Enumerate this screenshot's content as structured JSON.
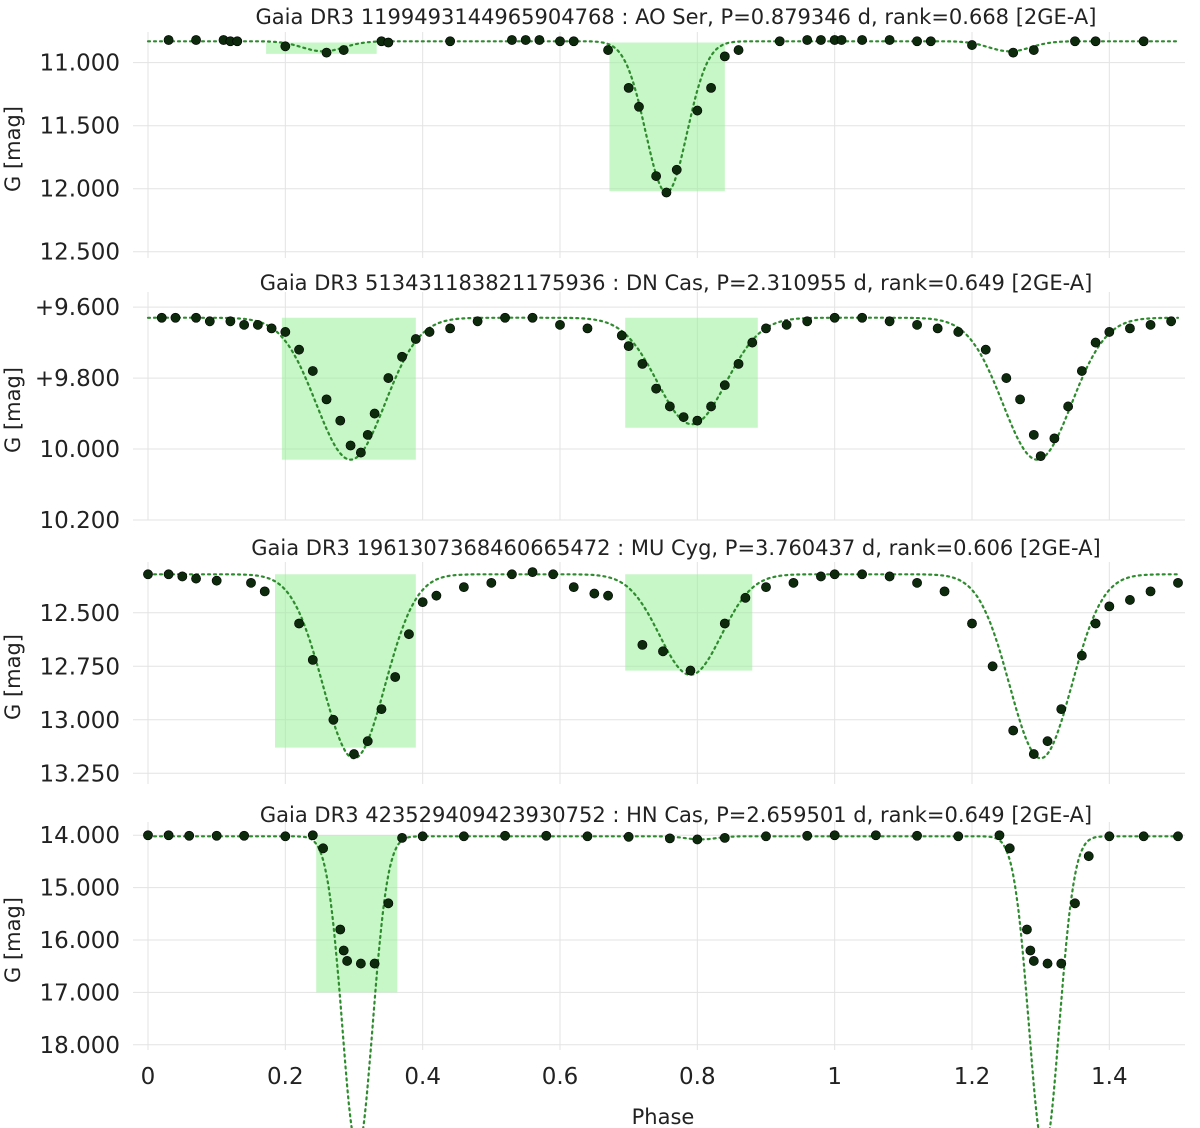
{
  "chart_data": {
    "type": "scatter",
    "xlabel": "Phase",
    "x_ticks": [
      0,
      0.2,
      0.4,
      0.6,
      0.8,
      1,
      1.2,
      1.4
    ],
    "x_tick_labels": [
      "0",
      "0.2",
      "0.4",
      "0.6",
      "0.8",
      "1",
      "1.2",
      "1.4"
    ],
    "xlim": [
      0,
      1.5
    ],
    "grid": true,
    "colors": {
      "points": "#0d2a0d",
      "model_line": "#2e8b2e",
      "eclipse_box": "#99ee99"
    },
    "panels": [
      {
        "title": "Gaia DR3 1199493144965904768 : AO Ser, P=0.879346 d, rank=0.668 [2GE-A]",
        "ylabel": "G [mag]",
        "y_reversed": true,
        "ylim": [
          10.82,
          12.55
        ],
        "y_ticks": [
          11.0,
          11.5,
          12.0,
          12.5
        ],
        "y_tick_labels": [
          "11.000",
          "11.500",
          "12.000",
          "12.500"
        ],
        "baseline": 10.83,
        "eclipses": [
          {
            "center": 0.255,
            "width": 0.03,
            "depth": 0.08
          },
          {
            "center": 0.755,
            "width": 0.03,
            "depth": 1.2
          }
        ],
        "highlight_boxes": [
          {
            "x": [
              0.172,
              0.333
            ],
            "y": [
              10.84,
              10.93
            ]
          },
          {
            "x": [
              0.672,
              0.84
            ],
            "y": [
              10.84,
              12.02
            ]
          }
        ],
        "points": [
          [
            0.03,
            10.82
          ],
          [
            0.07,
            10.82
          ],
          [
            0.11,
            10.82
          ],
          [
            0.12,
            10.83
          ],
          [
            0.13,
            10.83
          ],
          [
            0.2,
            10.87
          ],
          [
            0.26,
            10.92
          ],
          [
            0.285,
            10.9
          ],
          [
            0.34,
            10.83
          ],
          [
            0.35,
            10.84
          ],
          [
            0.44,
            10.83
          ],
          [
            0.53,
            10.82
          ],
          [
            0.55,
            10.82
          ],
          [
            0.57,
            10.82
          ],
          [
            0.6,
            10.83
          ],
          [
            0.62,
            10.83
          ],
          [
            0.67,
            10.9
          ],
          [
            0.7,
            11.2
          ],
          [
            0.715,
            11.35
          ],
          [
            0.74,
            11.9
          ],
          [
            0.755,
            12.03
          ],
          [
            0.77,
            11.85
          ],
          [
            0.8,
            11.38
          ],
          [
            0.82,
            11.2
          ],
          [
            0.84,
            10.95
          ],
          [
            0.86,
            10.9
          ],
          [
            0.92,
            10.83
          ],
          [
            0.96,
            10.82
          ],
          [
            0.98,
            10.82
          ],
          [
            1.0,
            10.82
          ],
          [
            1.01,
            10.82
          ],
          [
            1.04,
            10.82
          ],
          [
            1.08,
            10.82
          ],
          [
            1.12,
            10.83
          ],
          [
            1.14,
            10.83
          ],
          [
            1.2,
            10.86
          ],
          [
            1.26,
            10.92
          ],
          [
            1.29,
            10.9
          ],
          [
            1.35,
            10.83
          ],
          [
            1.38,
            10.83
          ],
          [
            1.45,
            10.83
          ]
        ]
      },
      {
        "title": "Gaia DR3 513431183821175936 : DN Cas, P=2.310955 d, rank=0.649 [2GE-A]",
        "ylabel": "G [mag]",
        "y_reversed": true,
        "ylim": [
          9.58,
          10.2
        ],
        "y_ticks": [
          9.6,
          9.8,
          10.0,
          10.2
        ],
        "y_tick_labels": [
          "+9.600",
          "+9.800",
          "10.000",
          "10.200"
        ],
        "baseline": 9.63,
        "eclipses": [
          {
            "center": 0.295,
            "width": 0.05,
            "depth": 0.4
          },
          {
            "center": 0.792,
            "width": 0.05,
            "depth": 0.3
          }
        ],
        "highlight_boxes": [
          {
            "x": [
              0.195,
              0.39
            ],
            "y": [
              9.63,
              10.03
            ]
          },
          {
            "x": [
              0.695,
              0.888
            ],
            "y": [
              9.63,
              9.94
            ]
          }
        ],
        "points": [
          [
            0.02,
            9.63
          ],
          [
            0.04,
            9.63
          ],
          [
            0.07,
            9.63
          ],
          [
            0.09,
            9.64
          ],
          [
            0.12,
            9.64
          ],
          [
            0.14,
            9.65
          ],
          [
            0.16,
            9.65
          ],
          [
            0.18,
            9.66
          ],
          [
            0.2,
            9.67
          ],
          [
            0.22,
            9.72
          ],
          [
            0.24,
            9.78
          ],
          [
            0.26,
            9.86
          ],
          [
            0.28,
            9.92
          ],
          [
            0.295,
            9.99
          ],
          [
            0.31,
            10.01
          ],
          [
            0.32,
            9.96
          ],
          [
            0.33,
            9.9
          ],
          [
            0.35,
            9.8
          ],
          [
            0.37,
            9.74
          ],
          [
            0.39,
            9.69
          ],
          [
            0.41,
            9.67
          ],
          [
            0.44,
            9.66
          ],
          [
            0.48,
            9.64
          ],
          [
            0.52,
            9.63
          ],
          [
            0.56,
            9.63
          ],
          [
            0.6,
            9.65
          ],
          [
            0.64,
            9.66
          ],
          [
            0.69,
            9.68
          ],
          [
            0.7,
            9.71
          ],
          [
            0.72,
            9.76
          ],
          [
            0.74,
            9.83
          ],
          [
            0.76,
            9.88
          ],
          [
            0.78,
            9.91
          ],
          [
            0.8,
            9.92
          ],
          [
            0.82,
            9.88
          ],
          [
            0.84,
            9.82
          ],
          [
            0.86,
            9.76
          ],
          [
            0.88,
            9.7
          ],
          [
            0.9,
            9.66
          ],
          [
            0.93,
            9.65
          ],
          [
            0.96,
            9.64
          ],
          [
            1.0,
            9.63
          ],
          [
            1.04,
            9.63
          ],
          [
            1.08,
            9.64
          ],
          [
            1.12,
            9.65
          ],
          [
            1.15,
            9.66
          ],
          [
            1.18,
            9.67
          ],
          [
            1.22,
            9.72
          ],
          [
            1.25,
            9.8
          ],
          [
            1.27,
            9.86
          ],
          [
            1.29,
            9.96
          ],
          [
            1.3,
            10.02
          ],
          [
            1.32,
            9.97
          ],
          [
            1.34,
            9.88
          ],
          [
            1.36,
            9.78
          ],
          [
            1.38,
            9.7
          ],
          [
            1.4,
            9.67
          ],
          [
            1.43,
            9.66
          ],
          [
            1.46,
            9.65
          ],
          [
            1.49,
            9.64
          ]
        ]
      },
      {
        "title": "Gaia DR3 1961307368460665472 : MU Cyg, P=3.760437 d, rank=0.606 [2GE-A]",
        "ylabel": "G [mag]",
        "y_reversed": true,
        "ylim": [
          12.3,
          13.3
        ],
        "y_ticks": [
          12.5,
          12.75,
          13.0,
          13.25
        ],
        "y_tick_labels": [
          "12.500",
          "12.750",
          "13.000",
          "13.250"
        ],
        "baseline": 12.32,
        "eclipses": [
          {
            "center": 0.3,
            "width": 0.045,
            "depth": 0.86
          },
          {
            "center": 0.79,
            "width": 0.045,
            "depth": 0.47
          }
        ],
        "highlight_boxes": [
          {
            "x": [
              0.185,
              0.39
            ],
            "y": [
              12.32,
              13.13
            ]
          },
          {
            "x": [
              0.695,
              0.88
            ],
            "y": [
              12.32,
              12.77
            ]
          }
        ],
        "points": [
          [
            0.0,
            12.32
          ],
          [
            0.03,
            12.32
          ],
          [
            0.05,
            12.33
          ],
          [
            0.07,
            12.34
          ],
          [
            0.1,
            12.35
          ],
          [
            0.15,
            12.36
          ],
          [
            0.17,
            12.4
          ],
          [
            0.22,
            12.55
          ],
          [
            0.24,
            12.72
          ],
          [
            0.27,
            13.0
          ],
          [
            0.3,
            13.16
          ],
          [
            0.32,
            13.1
          ],
          [
            0.34,
            12.95
          ],
          [
            0.36,
            12.8
          ],
          [
            0.38,
            12.6
          ],
          [
            0.4,
            12.45
          ],
          [
            0.42,
            12.42
          ],
          [
            0.46,
            12.38
          ],
          [
            0.5,
            12.36
          ],
          [
            0.53,
            12.32
          ],
          [
            0.56,
            12.31
          ],
          [
            0.59,
            12.32
          ],
          [
            0.62,
            12.38
          ],
          [
            0.65,
            12.41
          ],
          [
            0.67,
            12.42
          ],
          [
            0.72,
            12.65
          ],
          [
            0.75,
            12.68
          ],
          [
            0.79,
            12.77
          ],
          [
            0.84,
            12.55
          ],
          [
            0.87,
            12.43
          ],
          [
            0.9,
            12.38
          ],
          [
            0.94,
            12.36
          ],
          [
            0.98,
            12.33
          ],
          [
            1.0,
            12.32
          ],
          [
            1.04,
            12.32
          ],
          [
            1.08,
            12.33
          ],
          [
            1.12,
            12.36
          ],
          [
            1.16,
            12.4
          ],
          [
            1.2,
            12.55
          ],
          [
            1.23,
            12.75
          ],
          [
            1.26,
            13.05
          ],
          [
            1.29,
            13.16
          ],
          [
            1.31,
            13.1
          ],
          [
            1.33,
            12.95
          ],
          [
            1.36,
            12.7
          ],
          [
            1.38,
            12.55
          ],
          [
            1.4,
            12.47
          ],
          [
            1.43,
            12.44
          ],
          [
            1.46,
            12.4
          ],
          [
            1.5,
            12.36
          ]
        ]
      },
      {
        "title": "Gaia DR3 423529409423930752 : HN Cas, P=2.659501 d, rank=0.649 [2GE-A]",
        "ylabel": "G [mag]",
        "y_reversed": true,
        "ylim": [
          13.9,
          18.1
        ],
        "y_ticks": [
          14.0,
          15.0,
          16.0,
          17.0,
          18.0
        ],
        "y_tick_labels": [
          "14.000",
          "15.000",
          "16.000",
          "17.000",
          "18.000"
        ],
        "baseline": 14.02,
        "eclipses": [
          {
            "center": 0.305,
            "width": 0.022,
            "depth": 3.0
          },
          {
            "center": 0.805,
            "width": 0.022,
            "depth": 0.06
          },
          {
            "center": 1.305,
            "width": 0.022,
            "depth": 3.0
          }
        ],
        "highlight_boxes": [
          {
            "x": [
              0.245,
              0.363
            ],
            "y": [
              14.0,
              17.0
            ]
          }
        ],
        "points": [
          [
            0.0,
            14.0
          ],
          [
            0.03,
            14.0
          ],
          [
            0.06,
            14.01
          ],
          [
            0.1,
            14.01
          ],
          [
            0.14,
            14.01
          ],
          [
            0.2,
            14.02
          ],
          [
            0.24,
            14.0
          ],
          [
            0.255,
            14.25
          ],
          [
            0.28,
            15.8
          ],
          [
            0.285,
            16.2
          ],
          [
            0.29,
            16.4
          ],
          [
            0.31,
            16.45
          ],
          [
            0.33,
            16.45
          ],
          [
            0.35,
            15.3
          ],
          [
            0.37,
            14.05
          ],
          [
            0.4,
            14.02
          ],
          [
            0.46,
            14.02
          ],
          [
            0.52,
            14.01
          ],
          [
            0.58,
            14.01
          ],
          [
            0.64,
            14.02
          ],
          [
            0.7,
            14.03
          ],
          [
            0.76,
            14.06
          ],
          [
            0.8,
            14.08
          ],
          [
            0.84,
            14.05
          ],
          [
            0.9,
            14.02
          ],
          [
            0.96,
            14.01
          ],
          [
            1.0,
            14.0
          ],
          [
            1.06,
            14.0
          ],
          [
            1.12,
            14.01
          ],
          [
            1.18,
            14.02
          ],
          [
            1.24,
            14.0
          ],
          [
            1.255,
            14.25
          ],
          [
            1.28,
            15.8
          ],
          [
            1.285,
            16.2
          ],
          [
            1.29,
            16.4
          ],
          [
            1.31,
            16.45
          ],
          [
            1.33,
            16.45
          ],
          [
            1.35,
            15.3
          ],
          [
            1.37,
            14.4
          ],
          [
            1.4,
            14.02
          ],
          [
            1.45,
            14.02
          ],
          [
            1.5,
            14.02
          ]
        ]
      }
    ]
  }
}
